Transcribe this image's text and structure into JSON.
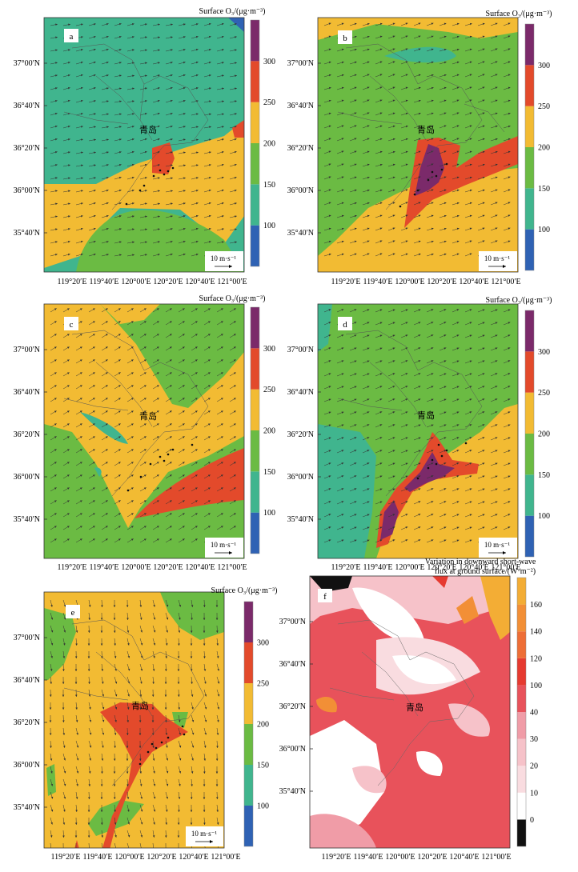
{
  "colorbar_title": "Surface O₃/(μg·m⁻³)",
  "flux_title_line1": "Variation in downward short-wave",
  "flux_title_line2": "flux at ground surface/(W·m⁻²)",
  "city_label": "青岛",
  "wind_scale_label": "10 m·s⁻¹",
  "lat_ticks": [
    "37°00′N",
    "36°40′N",
    "36°20′N",
    "36°00′N",
    "35°40′N"
  ],
  "lon_ticks": [
    "119°20′E",
    "119°40′E",
    "120°00′E",
    "120°20′E",
    "120°40′E",
    "121°00′E"
  ],
  "o3_levels": [
    "100",
    "150",
    "200",
    "250",
    "300"
  ],
  "flux_levels": [
    "0",
    "10",
    "20",
    "30",
    "40",
    "100",
    "120",
    "140",
    "160"
  ],
  "o3_colors": [
    "#2f62b4",
    "#40b58e",
    "#6bbb43",
    "#f2bb33",
    "#e34a2b",
    "#7b2a6a"
  ],
  "flux_colors": [
    "#111111",
    "#ffffff",
    "#f9dce0",
    "#f6c2c9",
    "#f09ca7",
    "#e8525b",
    "#e63a30",
    "#ee6e36",
    "#f28f36",
    "#f3ad35"
  ],
  "panels": [
    {
      "id": "a"
    },
    {
      "id": "b"
    },
    {
      "id": "c"
    },
    {
      "id": "d"
    },
    {
      "id": "e"
    },
    {
      "id": "f"
    }
  ]
}
